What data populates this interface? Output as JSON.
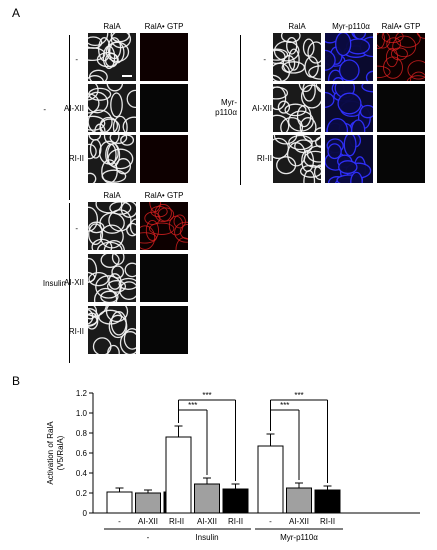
{
  "panel_a": {
    "label": "A",
    "left_top": {
      "headers": [
        "RalA",
        "RalA• GTP"
      ],
      "group_label": "-",
      "rows": [
        "-",
        "AI-XII",
        "RI-II"
      ]
    },
    "left_bottom": {
      "headers": [
        "RalA",
        "RalA• GTP"
      ],
      "group_label": "Insulin",
      "rows": [
        "-",
        "AI-XII",
        "RI-II"
      ]
    },
    "right": {
      "headers": [
        "RalA",
        "Myr-p110α",
        "RalA• GTP"
      ],
      "group_label": "Myr-p110α",
      "group_label_line1": "Myr-",
      "group_label_line2": "p110α",
      "rows": [
        "-",
        "AI-XII",
        "RI-II"
      ]
    }
  },
  "panel_b": {
    "label": "B"
  },
  "chart_data": {
    "type": "bar",
    "ylabel_line1": "Activation of RalA",
    "ylabel_line2": "(V5/RalA)",
    "ylim": [
      0,
      1.2
    ],
    "yticks": [
      "0",
      "0.2",
      "0.4",
      "0.6",
      "0.8",
      "1.0",
      "1.2"
    ],
    "groups": [
      {
        "name": "-",
        "categories": [
          "-",
          "AI-XII",
          "RI-II"
        ],
        "values": [
          0.21,
          0.2,
          0.21
        ],
        "errors": [
          0.04,
          0.03,
          0.04
        ],
        "fills": [
          "#ffffff",
          "#a0a0a0",
          "#000000"
        ]
      },
      {
        "name": "Insulin",
        "categories": [
          "-",
          "AI-XII",
          "RI-II"
        ],
        "values": [
          0.76,
          0.29,
          0.24
        ],
        "errors": [
          0.11,
          0.06,
          0.05
        ],
        "fills": [
          "#ffffff",
          "#a0a0a0",
          "#000000"
        ]
      },
      {
        "name": "Myr-p110α",
        "categories": [
          "-",
          "AI-XII",
          "RI-II"
        ],
        "values": [
          0.67,
          0.25,
          0.23
        ],
        "errors": [
          0.12,
          0.05,
          0.04
        ],
        "fills": [
          "#ffffff",
          "#a0a0a0",
          "#000000"
        ]
      }
    ],
    "significance": [
      {
        "group": 1,
        "from": 0,
        "to": 1,
        "label": "***"
      },
      {
        "group": 1,
        "from": 0,
        "to": 2,
        "label": "***"
      },
      {
        "group": 2,
        "from": 0,
        "to": 1,
        "label": "***"
      },
      {
        "group": 2,
        "from": 0,
        "to": 2,
        "label": "***"
      }
    ]
  }
}
